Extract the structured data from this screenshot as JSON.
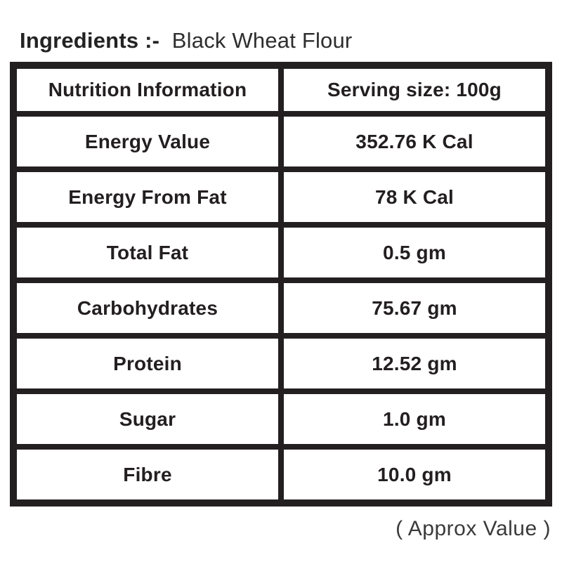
{
  "title": {
    "label_bold": "Ingredients :-",
    "product_name": "Black Wheat Flour"
  },
  "table": {
    "header": {
      "label": "Nutrition Information",
      "value": "Serving size: 100g"
    },
    "rows": [
      {
        "label": "Energy Value",
        "value": "352.76 K Cal"
      },
      {
        "label": "Energy From Fat",
        "value": "78 K Cal"
      },
      {
        "label": "Total Fat",
        "value": "0.5 gm"
      },
      {
        "label": "Carbohydrates",
        "value": "75.67 gm"
      },
      {
        "label": "Protein",
        "value": "12.52 gm"
      },
      {
        "label": "Sugar",
        "value": "1.0 gm"
      },
      {
        "label": "Fibre",
        "value": "10.0 gm"
      }
    ]
  },
  "footer": {
    "note": "( Approx Value )"
  },
  "colors": {
    "border": "#231f20",
    "table_text": "#231f20",
    "title_text": "#2e2e2e",
    "footer_text": "#3a3a3a",
    "background": "#ffffff"
  }
}
